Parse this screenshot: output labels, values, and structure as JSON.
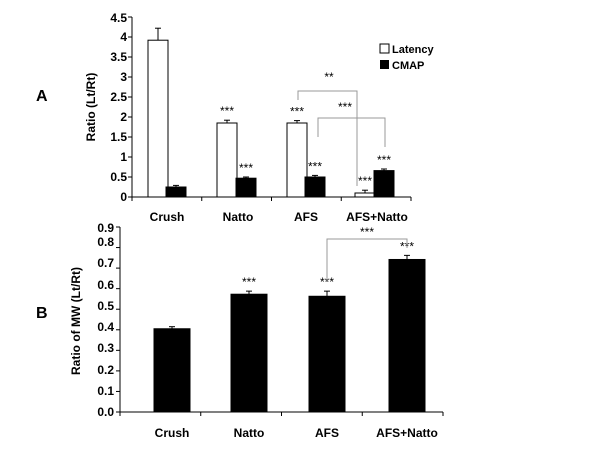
{
  "chart_data": [
    {
      "panel": "A",
      "type": "bar",
      "categories": [
        "Crush",
        "Natto",
        "AFS",
        "AFS+Natto"
      ],
      "ylabel": "Ratio (Lt/Rt)",
      "ylim": [
        0,
        4.5
      ],
      "yticks": [
        "0",
        "0.5",
        "1",
        "1.5",
        "2",
        "2.5",
        "3",
        "3.5",
        "4",
        "4.5"
      ],
      "legend_position": "top-right",
      "series": [
        {
          "name": "Latency",
          "fill": "#ffffff",
          "values": [
            3.92,
            1.85,
            1.85,
            0.1
          ],
          "errors": [
            0.3,
            0.07,
            0.06,
            0.07
          ],
          "sig": [
            "",
            "***",
            "***",
            "***"
          ]
        },
        {
          "name": "CMAP",
          "fill": "#000000",
          "values": [
            0.25,
            0.47,
            0.5,
            0.66
          ],
          "errors": [
            0.04,
            0.03,
            0.04,
            0.04
          ],
          "sig": [
            "",
            "***",
            "***",
            "***"
          ]
        }
      ],
      "brackets": [
        {
          "label": "**",
          "from": "AFS Latency",
          "to": "AFS+Natto Latency"
        },
        {
          "label": "***",
          "from": "AFS CMAP",
          "to": "AFS+Natto CMAP"
        }
      ]
    },
    {
      "panel": "B",
      "type": "bar",
      "categories": [
        "Crush",
        "Natto",
        "AFS",
        "AFS+Natto"
      ],
      "ylabel": "Ratio of MW (Lt/Rt)",
      "ylim": [
        0,
        0.9
      ],
      "yticks": [
        "0.0",
        "0.1",
        "0.2",
        "0.3",
        "0.4",
        "0.5",
        "0.6",
        "0.7",
        "0.8",
        "0.9"
      ],
      "series": [
        {
          "name": "",
          "fill": "#000000",
          "values": [
            0.405,
            0.573,
            0.563,
            0.742
          ],
          "errors": [
            0.01,
            0.015,
            0.025,
            0.02
          ],
          "sig": [
            "",
            "***",
            "***",
            "***"
          ]
        }
      ],
      "brackets": [
        {
          "label": "***",
          "from": "AFS",
          "to": "AFS+Natto"
        }
      ]
    }
  ]
}
